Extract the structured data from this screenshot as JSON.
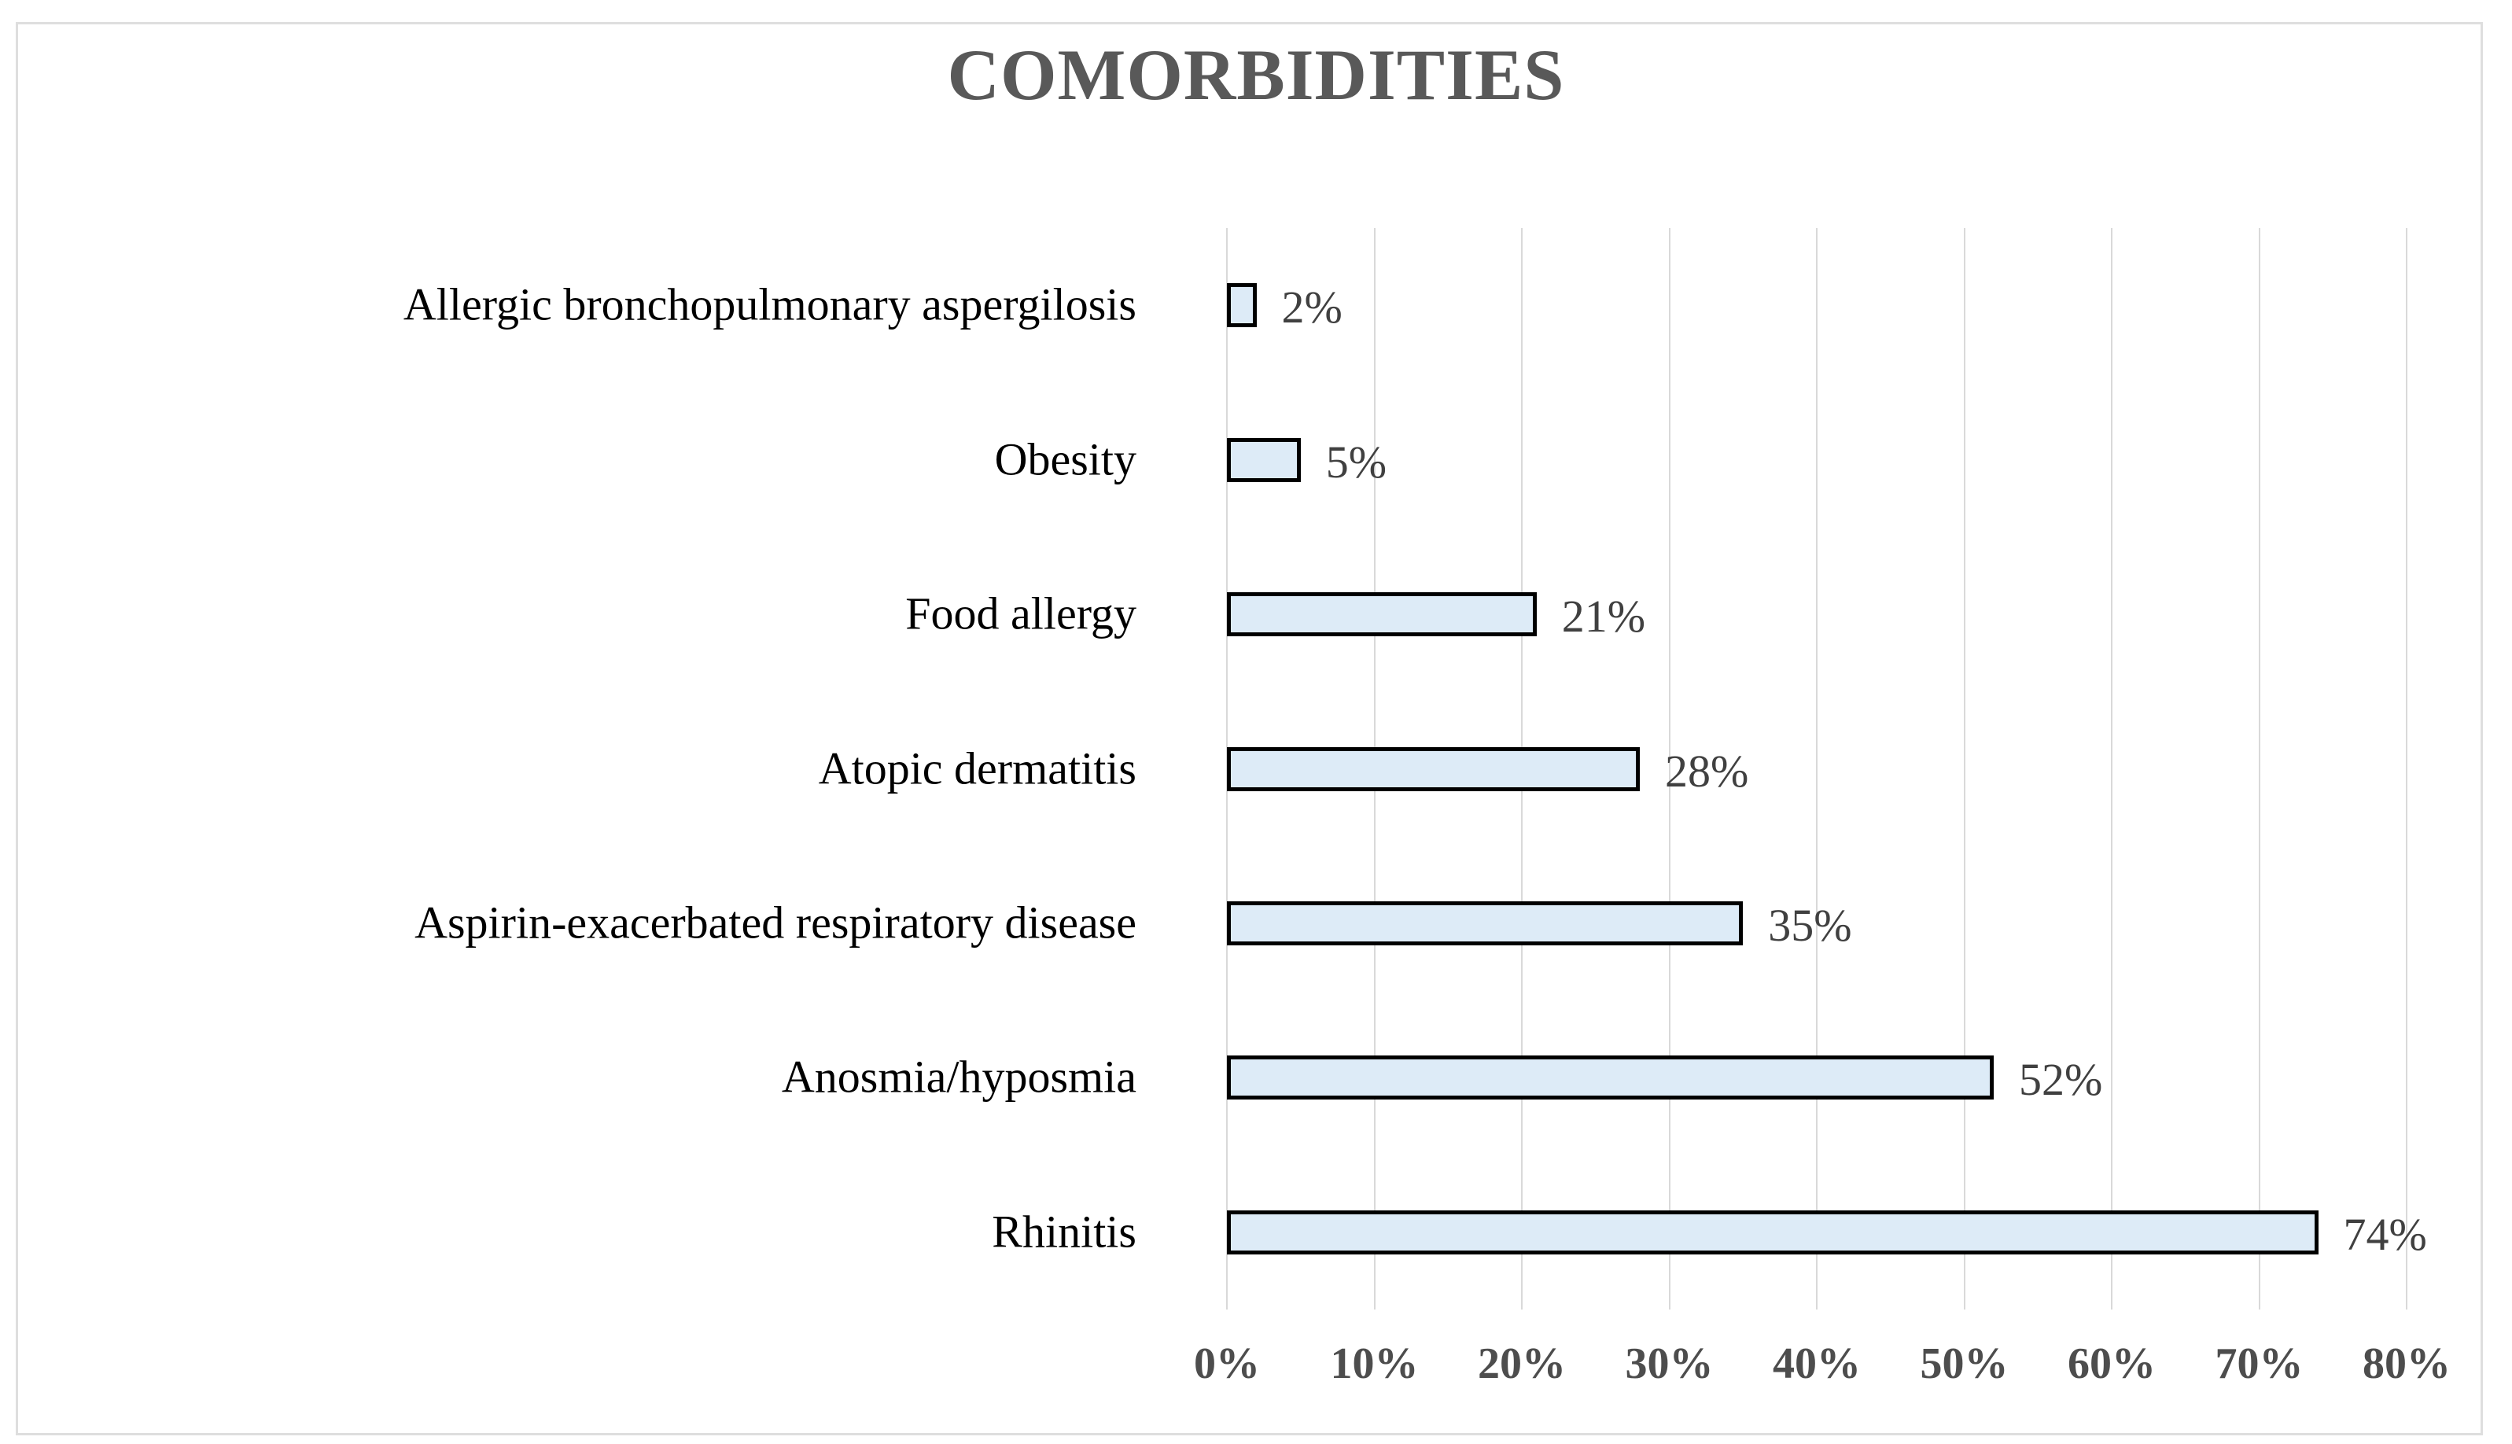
{
  "chart_data": {
    "type": "bar",
    "orientation": "horizontal",
    "title": "COMORBIDITIES",
    "categories": [
      "Allergic bronchopulmonary aspergilosis",
      "Obesity",
      "Food allergy",
      "Atopic dermatitis",
      "Aspirin-exacerbated respiratory disease",
      "Anosmia/hyposmia",
      "Rhinitis"
    ],
    "values": [
      2,
      5,
      21,
      28,
      35,
      52,
      74
    ],
    "data_labels": [
      "2%",
      "5%",
      "21%",
      "28%",
      "35%",
      "52%",
      "74%"
    ],
    "x_ticks": [
      "0%",
      "10%",
      "20%",
      "30%",
      "40%",
      "50%",
      "60%",
      "70%",
      "80%"
    ],
    "xlim": [
      0,
      80
    ],
    "xlabel": "",
    "ylabel": "",
    "grid": "vertical",
    "legend": "none",
    "colors": {
      "bar_fill": "#ddebf7",
      "bar_border": "#000000",
      "gridline": "#d9d9d9",
      "title": "#595959",
      "category_label": "#000000",
      "value_label": "#404040",
      "tick_label": "#4d4d4d",
      "frame_border": "#dedede"
    }
  }
}
